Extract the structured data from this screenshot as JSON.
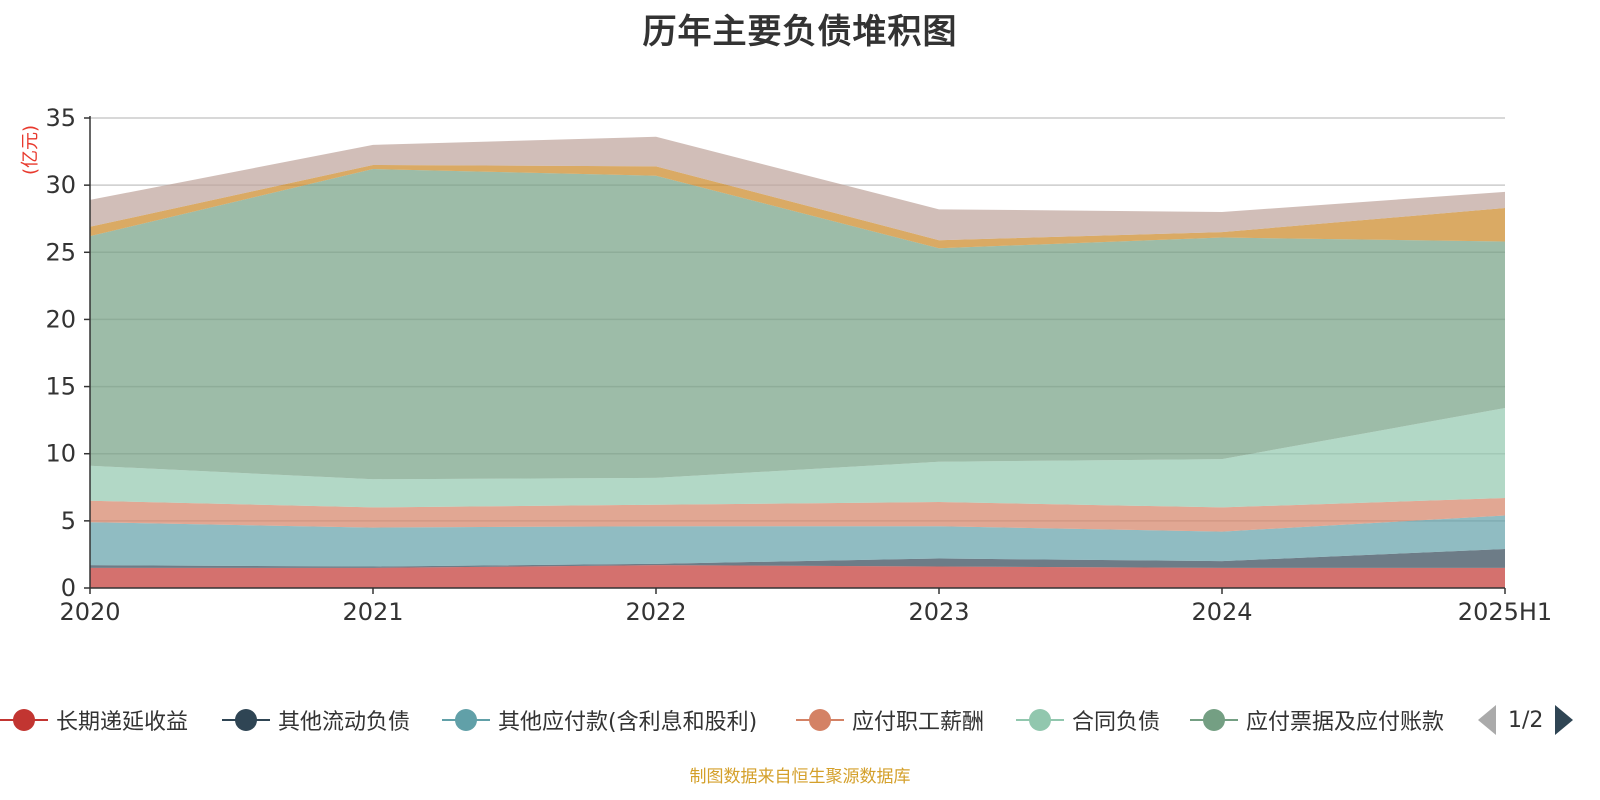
{
  "chart_data": {
    "type": "area",
    "stacked": true,
    "title": "历年主要负债堆积图",
    "unit": "(亿元)",
    "categories": [
      "2020",
      "2021",
      "2022",
      "2023",
      "2024",
      "2025H1"
    ],
    "ylim": [
      0,
      35
    ],
    "yticks": [
      0,
      5,
      10,
      15,
      20,
      25,
      30,
      35
    ],
    "grid": true,
    "series": [
      {
        "name": "长期递延收益",
        "color": "#c23531",
        "values": [
          1.5,
          1.5,
          1.7,
          1.6,
          1.5,
          1.5
        ]
      },
      {
        "name": "其他流动负债",
        "color": "#2f4554",
        "values": [
          0.2,
          0.1,
          0.1,
          0.6,
          0.5,
          1.4
        ]
      },
      {
        "name": "其他应付款(含利息和股利)",
        "color": "#61a0a8",
        "values": [
          3.2,
          2.9,
          2.8,
          2.4,
          2.2,
          2.5
        ]
      },
      {
        "name": "应付职工薪酬",
        "color": "#d48265",
        "values": [
          1.6,
          1.5,
          1.6,
          1.8,
          1.8,
          1.3
        ]
      },
      {
        "name": "合同负债",
        "color": "#91c7ae",
        "values": [
          2.6,
          2.1,
          2.0,
          3.0,
          3.6,
          6.7
        ]
      },
      {
        "name": "应付票据及应付账款",
        "color": "#749f83",
        "values": [
          17.1,
          23.1,
          22.5,
          15.9,
          16.5,
          12.4
        ]
      },
      {
        "name": "",
        "color": "#ca8622",
        "values": [
          0.7,
          0.3,
          0.7,
          0.6,
          0.4,
          2.5
        ]
      },
      {
        "name": "",
        "color": "#bda29a",
        "values": [
          2.0,
          1.5,
          2.2,
          2.3,
          1.5,
          1.2
        ]
      }
    ],
    "legend": {
      "placement": "bottom",
      "page": "1/2"
    },
    "source": "制图数据来自恒生聚源数据库"
  }
}
